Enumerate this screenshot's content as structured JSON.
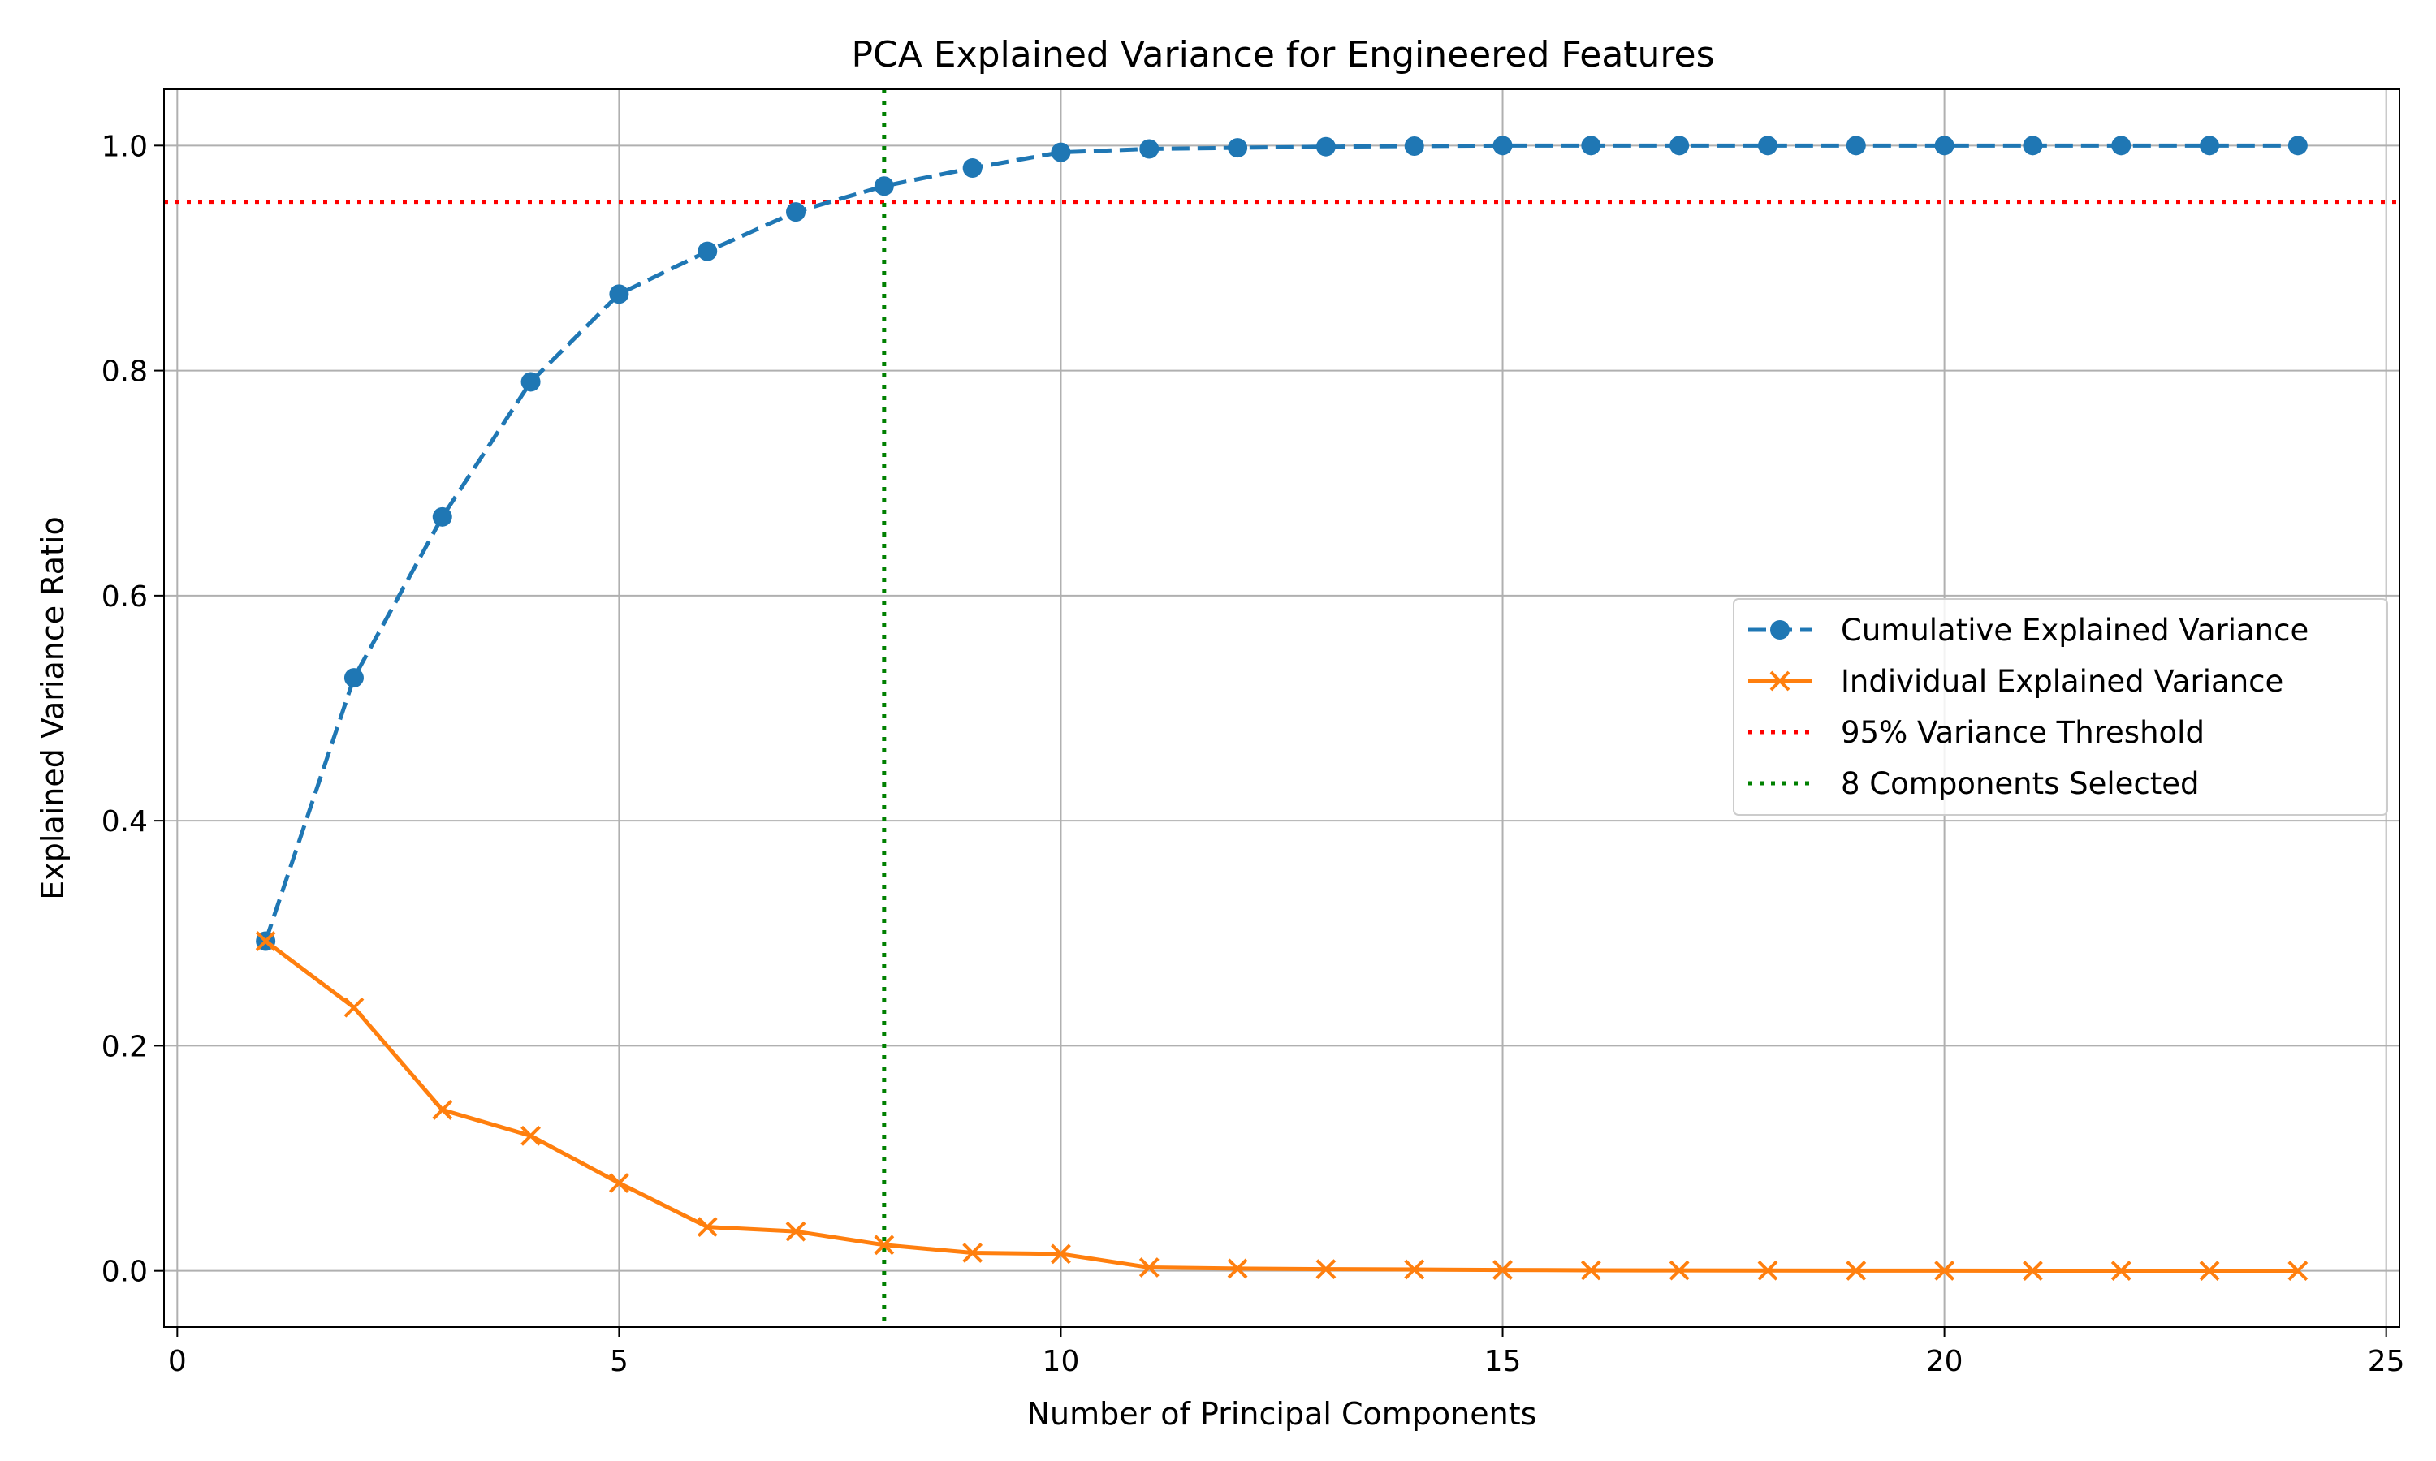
{
  "chart_data": {
    "type": "line",
    "title": "PCA Explained Variance for Engineered Features",
    "xlabel": "Number of Principal Components",
    "ylabel": "Explained Variance Ratio",
    "xlim": [
      -0.15,
      25.15
    ],
    "ylim": [
      -0.05,
      1.05
    ],
    "x_ticks": [
      0,
      5,
      10,
      15,
      20,
      25
    ],
    "y_ticks": [
      0.0,
      0.2,
      0.4,
      0.6,
      0.8,
      1.0
    ],
    "x_tick_labels": [
      "0",
      "5",
      "10",
      "15",
      "20",
      "25"
    ],
    "y_tick_labels": [
      "0.0",
      "0.2",
      "0.4",
      "0.6",
      "0.8",
      "1.0"
    ],
    "grid": true,
    "legend_position": "center-right",
    "x": [
      1,
      2,
      3,
      4,
      5,
      6,
      7,
      8,
      9,
      10,
      11,
      12,
      13,
      14,
      15,
      16,
      17,
      18,
      19,
      20,
      21,
      22,
      23,
      24
    ],
    "series": [
      {
        "name": "Cumulative Explained Variance",
        "color": "#1f77b4",
        "line_style": "dashed",
        "marker": "circle",
        "values": [
          0.293,
          0.527,
          0.67,
          0.79,
          0.868,
          0.906,
          0.941,
          0.964,
          0.98,
          0.994,
          0.997,
          0.998,
          0.999,
          0.9995,
          1.0,
          1.0,
          1.0,
          1.0,
          1.0,
          1.0,
          1.0,
          1.0,
          1.0,
          1.0
        ]
      },
      {
        "name": "Individual Explained Variance",
        "color": "#ff7f0e",
        "line_style": "solid",
        "marker": "x",
        "values": [
          0.293,
          0.234,
          0.143,
          0.12,
          0.078,
          0.039,
          0.035,
          0.023,
          0.016,
          0.015,
          0.003,
          0.002,
          0.0015,
          0.0012,
          0.0008,
          0.0005,
          0.0004,
          0.0003,
          0.0002,
          0.0002,
          0.0001,
          0.0001,
          0.0001,
          0.0001
        ]
      }
    ],
    "reference_lines": [
      {
        "name": "95% Variance Threshold",
        "orientation": "horizontal",
        "value": 0.95,
        "color": "#ff0000",
        "line_style": "dotted"
      },
      {
        "name": "8 Components Selected",
        "orientation": "vertical",
        "value": 8,
        "color": "#008000",
        "line_style": "dotted"
      }
    ]
  }
}
